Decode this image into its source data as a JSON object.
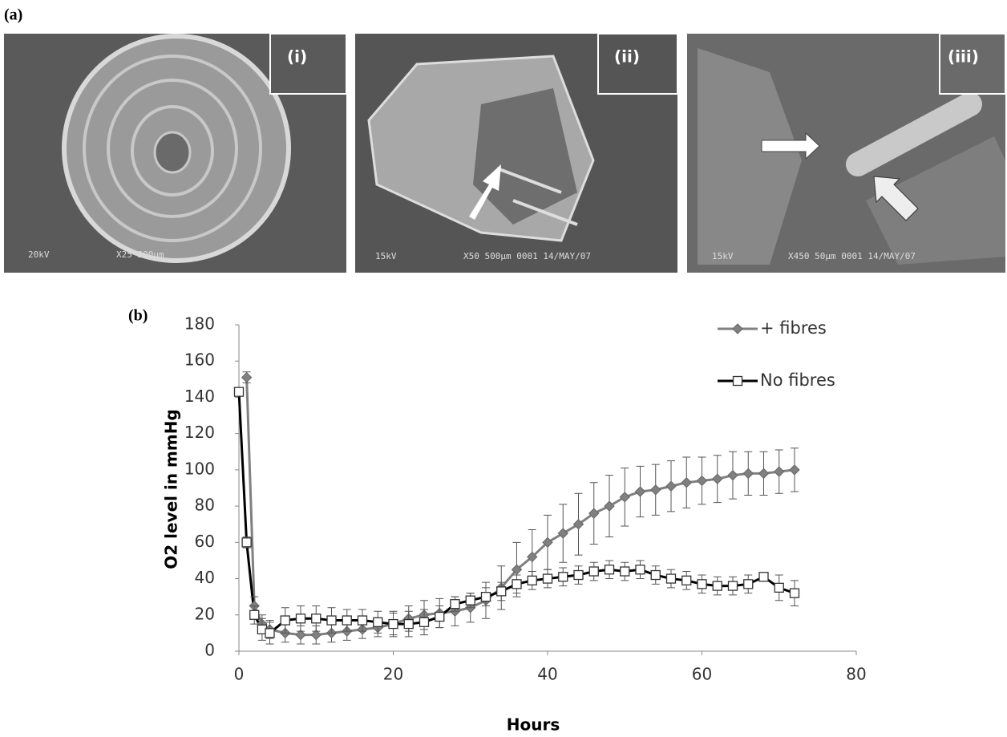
{
  "panel_a": {
    "label": "(a)",
    "images": [
      {
        "label": "(i)",
        "voltage": "20kV",
        "caption": "X25 200µm"
      },
      {
        "label": "(ii)",
        "voltage": "15kV",
        "caption": "X50 500µm 0001 14/MAY/07"
      },
      {
        "label": "(iii)",
        "voltage": "15kV",
        "caption": "X450 50µm 0001 14/MAY/07"
      }
    ]
  },
  "chart_data": {
    "type": "line",
    "panel_label": "(b)",
    "x_label": "Hours",
    "y_label": "O2 level in mmHg",
    "xlim": [
      0,
      80
    ],
    "xticks": [
      0,
      20,
      40,
      60,
      80
    ],
    "ylim": [
      0,
      180
    ],
    "yticks": [
      0,
      20,
      40,
      60,
      80,
      100,
      120,
      140,
      160,
      180
    ],
    "legend": "top-right",
    "series": [
      {
        "name": "+ fibres",
        "color": "#808080",
        "marker": "diamond",
        "x": [
          1,
          2,
          3,
          4,
          6,
          8,
          10,
          12,
          14,
          16,
          18,
          20,
          22,
          24,
          26,
          28,
          30,
          32,
          34,
          36,
          38,
          40,
          42,
          44,
          46,
          48,
          50,
          52,
          54,
          56,
          58,
          60,
          62,
          64,
          66,
          68,
          70,
          72
        ],
        "values": [
          151,
          25,
          15,
          12,
          10,
          9,
          9,
          10,
          11,
          12,
          13,
          15,
          18,
          20,
          21,
          22,
          24,
          28,
          35,
          45,
          52,
          60,
          65,
          70,
          76,
          80,
          85,
          88,
          89,
          91,
          93,
          94,
          95,
          97,
          98,
          98,
          99,
          100
        ],
        "errors": [
          3,
          5,
          5,
          5,
          5,
          5,
          5,
          5,
          5,
          5,
          5,
          6,
          7,
          8,
          8,
          8,
          8,
          10,
          12,
          15,
          15,
          15,
          16,
          17,
          17,
          17,
          16,
          14,
          14,
          14,
          14,
          13,
          13,
          13,
          12,
          12,
          12,
          12
        ]
      },
      {
        "name": "No fibres",
        "color": "#000000",
        "marker": "square",
        "x": [
          0,
          1,
          2,
          3,
          4,
          6,
          8,
          10,
          12,
          14,
          16,
          18,
          20,
          22,
          24,
          26,
          28,
          30,
          32,
          34,
          36,
          38,
          40,
          42,
          44,
          46,
          48,
          50,
          52,
          54,
          56,
          58,
          60,
          62,
          64,
          66,
          68,
          70,
          72
        ],
        "values": [
          143,
          60,
          20,
          12,
          10,
          17,
          18,
          18,
          17,
          17,
          17,
          16,
          15,
          15,
          16,
          19,
          26,
          28,
          30,
          33,
          37,
          39,
          40,
          41,
          42,
          44,
          45,
          44,
          45,
          42,
          40,
          39,
          37,
          36,
          36,
          37,
          41,
          35,
          32
        ],
        "errors": [
          2,
          3,
          5,
          6,
          6,
          7,
          7,
          7,
          7,
          6,
          6,
          6,
          7,
          7,
          7,
          6,
          4,
          4,
          5,
          5,
          5,
          5,
          5,
          5,
          5,
          5,
          5,
          5,
          5,
          5,
          5,
          5,
          5,
          5,
          5,
          5,
          2,
          7,
          7
        ]
      }
    ]
  }
}
